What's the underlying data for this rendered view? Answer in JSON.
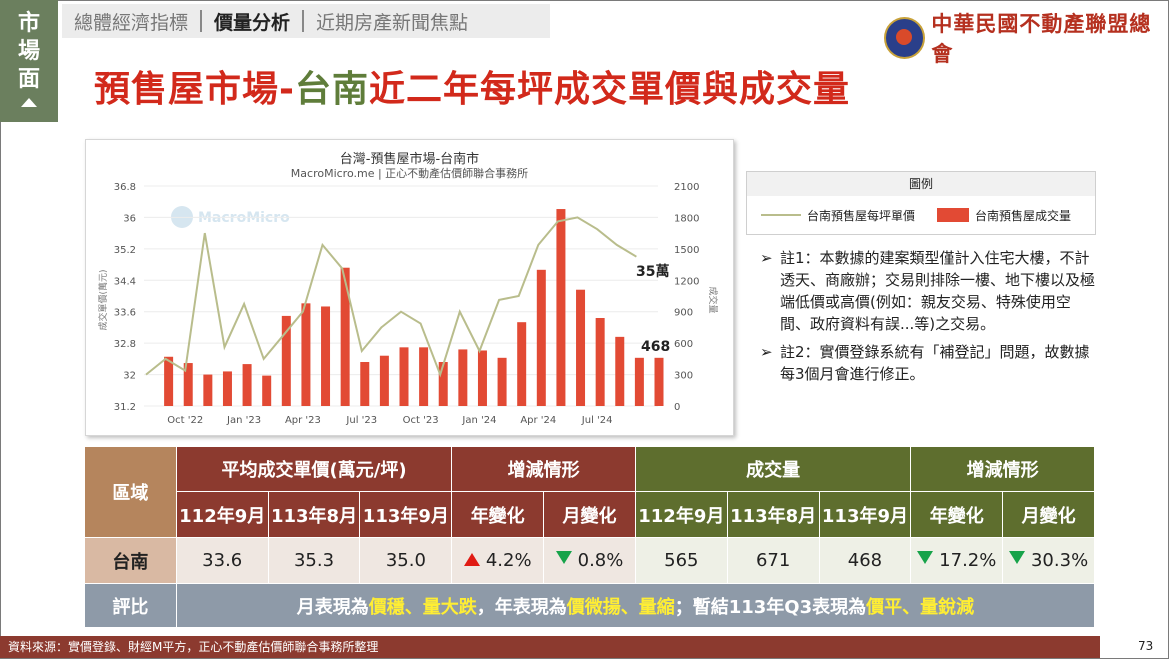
{
  "side_tab": {
    "chars": [
      "市",
      "場",
      "面"
    ]
  },
  "nav": {
    "items": [
      "總體經濟指標",
      "價量分析",
      "近期房產新聞焦點"
    ],
    "active_index": 1
  },
  "logo": {
    "name": "中華民國不動產聯盟總會"
  },
  "page_title": {
    "part1": "預售屋市場-",
    "part2": "台南",
    "part3": "近二年每坪成交單價與成交量"
  },
  "chart": {
    "title": "台灣-預售屋市場-台南市",
    "subtitle": "MacroMicro.me | 正心不動產估價師聯合事務所",
    "watermark": "MacroMicro",
    "left_axis_label": "成交單價(萬元)",
    "right_axis_label": "成交量",
    "annotation_price": "35萬",
    "annotation_volume": "468"
  },
  "chart_data": {
    "type": "bar",
    "x_ticks": [
      "Oct '22",
      "Jan '23",
      "Apr '23",
      "Jul '23",
      "Oct '23",
      "Jan '24",
      "Apr '24",
      "Jul '24"
    ],
    "y_left_ticks": [
      "31.2",
      "32",
      "32.8",
      "33.6",
      "34.4",
      "35.2",
      "36",
      "36.8"
    ],
    "y_right_ticks": [
      "0",
      "300",
      "600",
      "900",
      "1200",
      "1500",
      "1800",
      "2100"
    ],
    "ylim_left": [
      31.2,
      36.8
    ],
    "ylim_right": [
      0,
      2100
    ],
    "series": [
      {
        "name": "台南預售屋每坪單價",
        "type": "line",
        "color": "#b9bd8c",
        "values": [
          32.0,
          32.4,
          32.1,
          35.6,
          32.7,
          33.8,
          32.4,
          33.0,
          33.6,
          35.3,
          34.7,
          32.6,
          33.2,
          33.6,
          33.3,
          32.0,
          33.6,
          32.6,
          33.9,
          34.0,
          35.3,
          35.9,
          36.0,
          35.7,
          35.3,
          35.0
        ],
        "months": [
          "2022-08",
          "2022-09",
          "2022-10",
          "2022-11",
          "2022-12",
          "2023-01",
          "2023-02",
          "2023-03",
          "2023-04",
          "2023-05",
          "2023-06",
          "2023-07",
          "2023-08",
          "2023-09",
          "2023-10",
          "2023-11",
          "2023-12",
          "2024-01",
          "2024-02",
          "2024-03",
          "2024-04",
          "2024-05",
          "2024-06",
          "2024-07",
          "2024-08",
          "2024-09"
        ]
      },
      {
        "name": "台南預售屋成交量",
        "type": "bar",
        "color": "#e24a34",
        "values": [
          470,
          410,
          300,
          330,
          400,
          290,
          860,
          980,
          950,
          1320,
          420,
          480,
          560,
          560,
          420,
          540,
          530,
          460,
          800,
          1300,
          1880,
          1110,
          840,
          660,
          460,
          460
        ],
        "months": [
          "2022-09",
          "2022-10",
          "2022-11",
          "2022-12",
          "2023-01",
          "2023-02",
          "2023-03",
          "2023-04",
          "2023-05",
          "2023-06",
          "2023-07",
          "2023-08",
          "2023-09",
          "2023-10",
          "2023-11",
          "2023-12",
          "2024-01",
          "2024-02",
          "2024-03",
          "2024-04",
          "2024-05",
          "2024-06",
          "2024-07",
          "2024-08",
          "2024-09",
          "2024-10"
        ]
      }
    ]
  },
  "legend": {
    "title": "圖例",
    "line_label": "台南預售屋每坪單價",
    "bar_label": "台南預售屋成交量"
  },
  "notes": [
    {
      "bullet": "➢",
      "text": "註1：本數據的建案類型僅計入住宅大樓，不計透天、商廠辦；交易則排除一樓、地下樓以及極端低價或高價(例如：親友交易、特殊使用空間、政府資料有誤...等)之交易。"
    },
    {
      "bullet": "➢",
      "text": "註2：實價登錄系統有「補登記」問題，故數據每3個月會進行修正。"
    }
  ],
  "table": {
    "area_header": "區域",
    "price_header": "平均成交單價(萬元/坪)",
    "change_header": "增減情形",
    "volume_header": "成交量",
    "periods": [
      "112年9月",
      "113年8月",
      "113年9月"
    ],
    "yoy_label": "年變化",
    "mom_label": "月變化",
    "region": "台南",
    "price_values": [
      "33.6",
      "35.3",
      "35.0"
    ],
    "price_yoy": "4.2%",
    "price_mom": "0.8%",
    "volume_values": [
      "565",
      "671",
      "468"
    ],
    "volume_yoy": "17.2%",
    "volume_mom": "30.3%",
    "eval_label": "評比",
    "eval_parts": [
      "月表現為",
      "價穩、量大跌",
      "，年表現為",
      "價微揚、量縮",
      "；暫結113年Q3表現為",
      "價平、量銳減"
    ]
  },
  "footer": {
    "source": "資料來源：實價登錄、財經M平方，正心不動產估價師聯合事務所整理",
    "page": "73"
  }
}
